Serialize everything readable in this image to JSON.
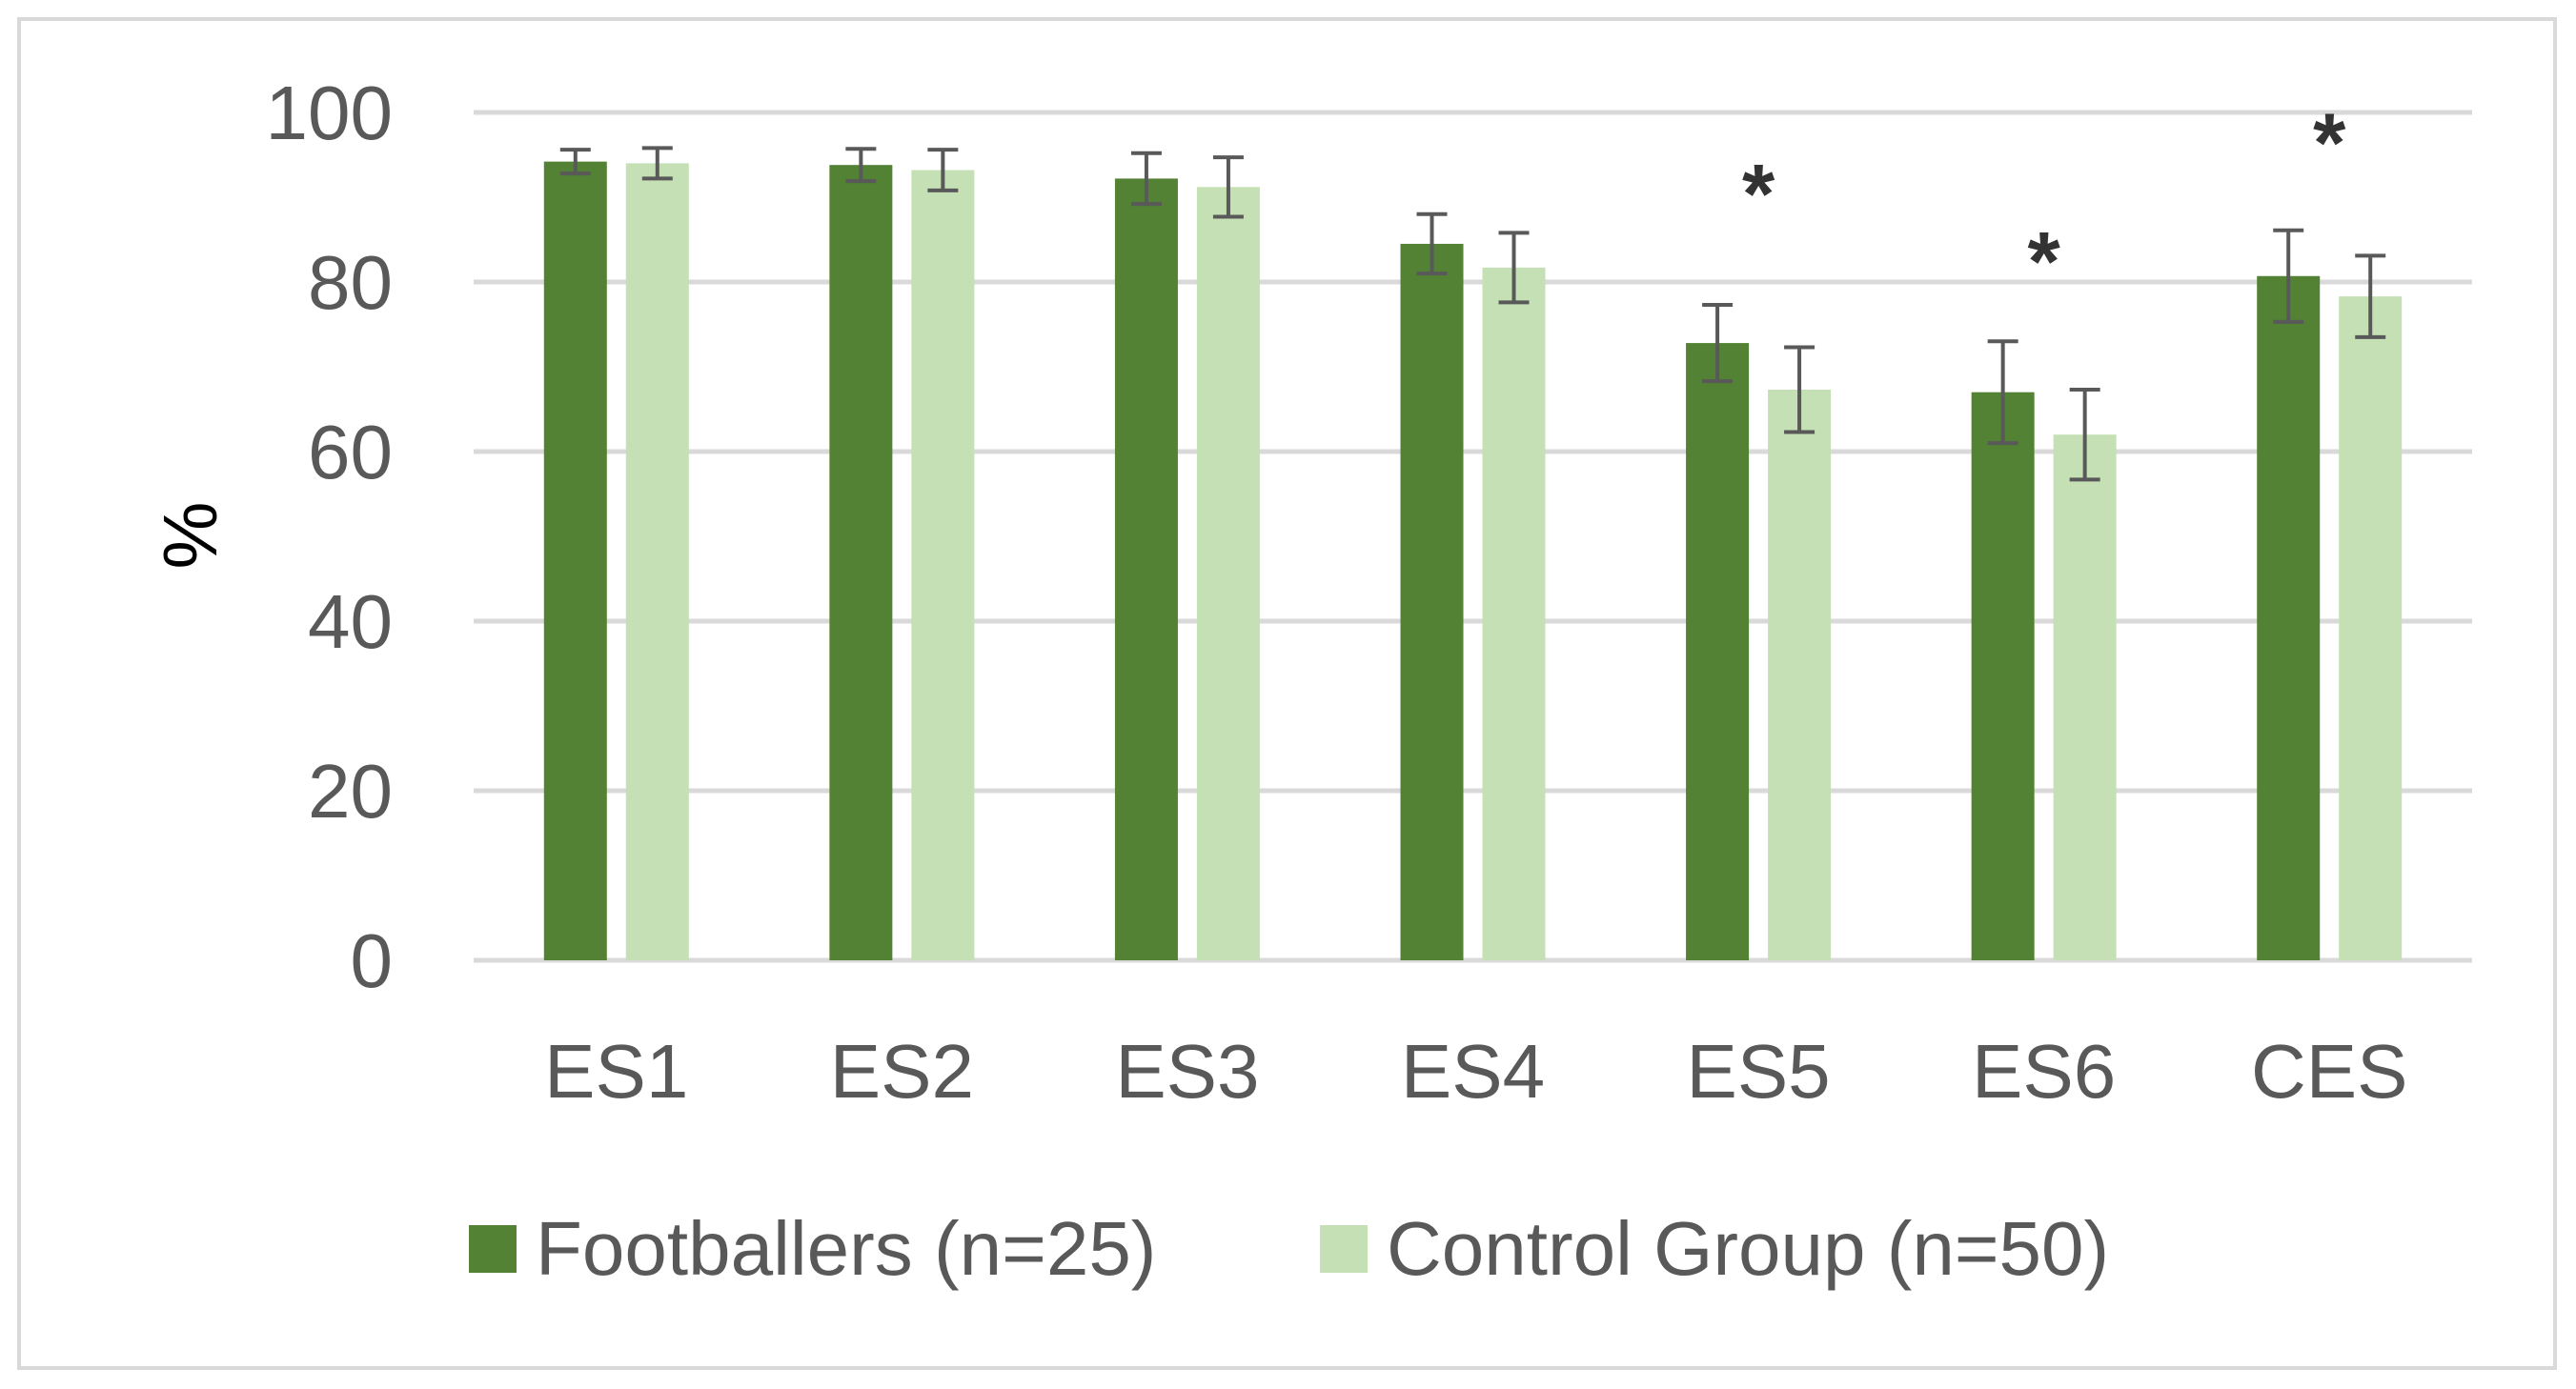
{
  "chart_data": {
    "type": "bar",
    "title": "",
    "xlabel": "",
    "ylabel": "%",
    "ylim": [
      0,
      100
    ],
    "yticks": [
      0,
      20,
      40,
      60,
      80,
      100
    ],
    "grid": true,
    "legend_position": "bottom",
    "categories": [
      "ES1",
      "ES2",
      "ES3",
      "ES4",
      "ES5",
      "ES6",
      "CES"
    ],
    "series": [
      {
        "name": "Footballers (n=25)",
        "color": "#548235",
        "values": [
          94.2,
          93.8,
          92.2,
          84.5,
          72.8,
          67.0,
          80.7
        ],
        "error": [
          1.4,
          1.9,
          3.0,
          3.5,
          4.5,
          6.0,
          5.4
        ]
      },
      {
        "name": "Control Group (n=50)",
        "color": "#c5e0b4",
        "values": [
          94.0,
          93.2,
          91.2,
          81.7,
          67.3,
          62.0,
          78.3
        ],
        "error": [
          1.8,
          2.4,
          3.5,
          4.1,
          5.0,
          5.3,
          4.8
        ]
      }
    ],
    "error_bar_color": "#595959",
    "annotations": [
      {
        "category": "ES5",
        "text": "*",
        "y": 94
      },
      {
        "category": "ES6",
        "text": "*",
        "y": 86
      },
      {
        "category": "CES",
        "text": "*",
        "y": 100
      }
    ]
  }
}
